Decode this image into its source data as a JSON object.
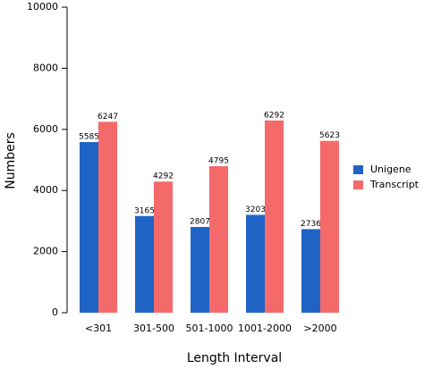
{
  "chart_data": {
    "type": "bar",
    "x_label": "Length Interval",
    "y_label": "Numbers",
    "categories": [
      "<301",
      "301-500",
      "501-1000",
      "1001-2000",
      ">2000"
    ],
    "series": [
      {
        "name": "Unigene",
        "color": "#1f64c4",
        "values": [
          5585,
          3165,
          2807,
          3203,
          2736
        ]
      },
      {
        "name": "Transcript",
        "color": "#f46a6a",
        "values": [
          6247,
          4292,
          4795,
          6292,
          5623
        ]
      }
    ],
    "ylim": [
      0,
      10000
    ],
    "yticks": [
      0,
      2000,
      4000,
      6000,
      8000,
      10000
    ],
    "legend": "right"
  }
}
